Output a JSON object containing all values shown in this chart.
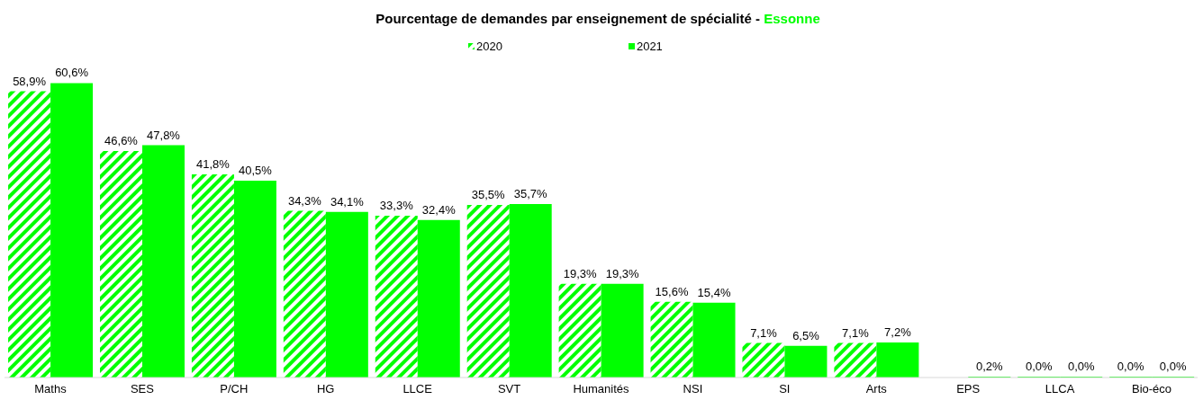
{
  "chart_data": {
    "type": "bar",
    "title": "Pourcentage de demandes par enseignement de spécialité  -",
    "subtitle": "Essonne",
    "categories": [
      "Maths",
      "SES",
      "P/CH",
      "HG",
      "LLCE",
      "SVT",
      "Humanités",
      "NSI",
      "SI",
      "Arts",
      "EPS",
      "LLCA",
      "Bio-éco"
    ],
    "series": [
      {
        "name": "2020",
        "color": "#00ff00",
        "values": [
          58.9,
          46.6,
          41.8,
          34.3,
          33.3,
          35.5,
          19.3,
          15.6,
          7.1,
          7.1,
          null,
          0.0,
          0.0
        ],
        "value_labels": [
          "58,9%",
          "46,6%",
          "41,8%",
          "34,3%",
          "33,3%",
          "35,5%",
          "19,3%",
          "15,6%",
          "7,1%",
          "7,1%",
          null,
          "0,0%",
          "0,0%"
        ]
      },
      {
        "name": "2021",
        "color": "#00ff00",
        "values": [
          60.6,
          47.8,
          40.5,
          34.1,
          32.4,
          35.7,
          19.3,
          15.4,
          6.5,
          7.2,
          0.2,
          0.0,
          0.0
        ],
        "value_labels": [
          "60,6%",
          "47,8%",
          "40,5%",
          "34,1%",
          "32,4%",
          "35,7%",
          "19,3%",
          "15,4%",
          "6,5%",
          "7,2%",
          "0,2%",
          "0,0%",
          "0,0%"
        ]
      }
    ],
    "legend": "top"
  }
}
